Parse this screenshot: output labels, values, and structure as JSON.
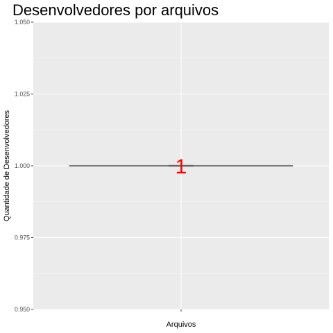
{
  "chart_data": {
    "type": "boxplot",
    "title": "Desenvolvedores por arquivos",
    "xlabel": "Arquivos",
    "ylabel": "Quantidade de Desenvolvedores",
    "categories": [
      ""
    ],
    "values": [
      1
    ],
    "box": {
      "min": 1,
      "q1": 1,
      "median": 1,
      "q3": 1,
      "max": 1
    },
    "data_labels": [
      {
        "text": "1",
        "x": 0,
        "y": 1
      }
    ],
    "ylim": [
      0.95,
      1.05
    ],
    "yticks": [
      {
        "value": 0.95,
        "label": "0.950"
      },
      {
        "value": 0.975,
        "label": "0.975"
      },
      {
        "value": 1.0,
        "label": "1.000"
      },
      {
        "value": 1.025,
        "label": "1.025"
      },
      {
        "value": 1.05,
        "label": "1.050"
      }
    ],
    "grid": true,
    "legend": "none",
    "colors": {
      "panel_background": "#ebebeb",
      "grid_major": "#ffffff",
      "grid_minor": "#f5f5f5",
      "box_line": "#333333",
      "label": "#ff0000",
      "tick": "#333333"
    }
  }
}
